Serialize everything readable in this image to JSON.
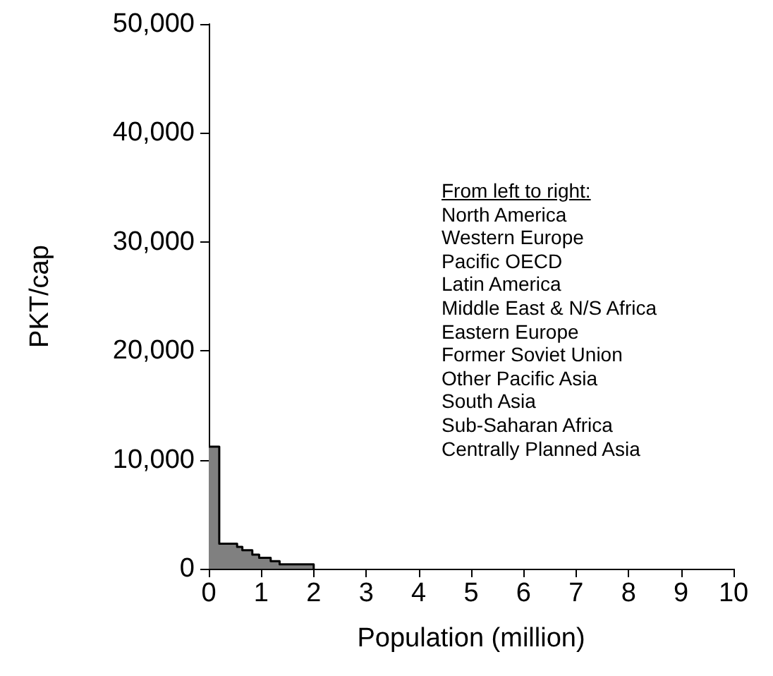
{
  "chart_data": {
    "type": "step",
    "xlabel": "Population (million)",
    "ylabel": "PKT/cap",
    "x": [
      0,
      0.2,
      0.54,
      0.64,
      0.83,
      0.96,
      1.18,
      1.35,
      2.0
    ],
    "series": [
      {
        "color": "#000000",
        "values": [
          11200,
          2300,
          2000,
          1700,
          1300,
          1000,
          700,
          400,
          0
        ]
      }
    ],
    "xlim": [
      0,
      10
    ],
    "xticks": [
      0,
      1,
      2,
      3,
      4,
      5,
      6,
      7,
      8,
      9,
      10
    ],
    "ylim": [
      0,
      50000
    ],
    "yticks": [
      0,
      {
        "value": 10000,
        "label": "10,000"
      },
      {
        "value": 20000,
        "label": "20,000"
      },
      {
        "value": 30000,
        "label": "30,000"
      },
      {
        "value": 40000,
        "label": "40,000"
      },
      {
        "value": 50000,
        "label": "50,000"
      }
    ],
    "grid": false,
    "annotations": [
      "From left to right:",
      "North America",
      "Western Europe",
      "Pacific OECD",
      "Latin America",
      "Middle East & N/S Africa",
      "Eastern Europe",
      "Former Soviet Union",
      "Other Pacific Asia",
      "South Asia",
      "Sub-Saharan Africa",
      "Centrally Planned Asia"
    ]
  }
}
